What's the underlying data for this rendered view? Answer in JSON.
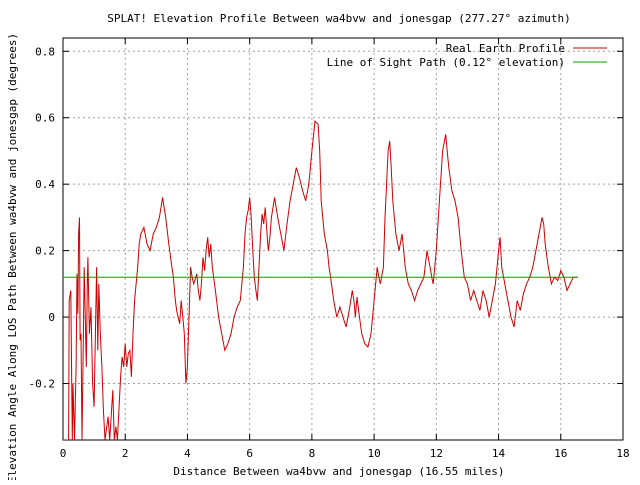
{
  "chart_data": {
    "type": "line",
    "title": "SPLAT! Elevation Profile Between wa4bvw and jonesgap (277.27° azimuth)",
    "xlabel": "Distance Between wa4bvw and jonesgap (16.55 miles)",
    "ylabel": "Elevation Angle Along LOS Path Between wa4bvw and jonesgap (degrees)",
    "xlim": [
      0,
      18
    ],
    "ylim": [
      -0.37,
      0.84
    ],
    "xticks": [
      0,
      2,
      4,
      6,
      8,
      10,
      12,
      14,
      16,
      18
    ],
    "xtick_labels": [
      "0",
      "2",
      "4",
      "6",
      "8",
      "10",
      "12",
      "14",
      "16",
      "18"
    ],
    "yticks": [
      -0.2,
      0,
      0.2,
      0.4,
      0.6,
      0.8
    ],
    "ytick_labels": [
      "-0.2",
      "0",
      "0.2",
      "0.4",
      "0.6",
      "0.8"
    ],
    "grid": true,
    "legend_position": "top-right",
    "series": [
      {
        "name": "Real Earth Profile",
        "color": "#cc0000",
        "points": [
          [
            0.0,
            -0.37
          ],
          [
            0.18,
            -0.37
          ],
          [
            0.2,
            0.05
          ],
          [
            0.25,
            0.08
          ],
          [
            0.3,
            -0.37
          ],
          [
            0.32,
            -0.2
          ],
          [
            0.37,
            -0.37
          ],
          [
            0.42,
            -0.15
          ],
          [
            0.45,
            0.13
          ],
          [
            0.48,
            0.01
          ],
          [
            0.5,
            0.25
          ],
          [
            0.53,
            0.3
          ],
          [
            0.55,
            -0.07
          ],
          [
            0.58,
            -0.05
          ],
          [
            0.61,
            -0.37
          ],
          [
            0.65,
            -0.1
          ],
          [
            0.68,
            0.15
          ],
          [
            0.72,
            -0.02
          ],
          [
            0.75,
            -0.15
          ],
          [
            0.78,
            0.1
          ],
          [
            0.8,
            0.18
          ],
          [
            0.85,
            -0.05
          ],
          [
            0.9,
            0.03
          ],
          [
            0.95,
            -0.2
          ],
          [
            1.0,
            -0.27
          ],
          [
            1.05,
            0.0
          ],
          [
            1.08,
            0.15
          ],
          [
            1.12,
            -0.1
          ],
          [
            1.15,
            0.1
          ],
          [
            1.2,
            -0.05
          ],
          [
            1.25,
            -0.15
          ],
          [
            1.3,
            -0.28
          ],
          [
            1.35,
            -0.37
          ],
          [
            1.45,
            -0.3
          ],
          [
            1.5,
            -0.37
          ],
          [
            1.6,
            -0.22
          ],
          [
            1.65,
            -0.37
          ],
          [
            1.7,
            -0.33
          ],
          [
            1.75,
            -0.37
          ],
          [
            1.85,
            -0.18
          ],
          [
            1.9,
            -0.12
          ],
          [
            1.95,
            -0.15
          ],
          [
            2.0,
            -0.08
          ],
          [
            2.05,
            -0.15
          ],
          [
            2.1,
            -0.11
          ],
          [
            2.15,
            -0.1
          ],
          [
            2.2,
            -0.18
          ],
          [
            2.25,
            -0.05
          ],
          [
            2.3,
            0.05
          ],
          [
            2.35,
            0.1
          ],
          [
            2.4,
            0.15
          ],
          [
            2.45,
            0.22
          ],
          [
            2.5,
            0.25
          ],
          [
            2.6,
            0.27
          ],
          [
            2.7,
            0.22
          ],
          [
            2.8,
            0.2
          ],
          [
            2.9,
            0.25
          ],
          [
            3.0,
            0.27
          ],
          [
            3.1,
            0.3
          ],
          [
            3.2,
            0.36
          ],
          [
            3.3,
            0.3
          ],
          [
            3.4,
            0.22
          ],
          [
            3.5,
            0.15
          ],
          [
            3.55,
            0.12
          ],
          [
            3.6,
            0.06
          ],
          [
            3.65,
            0.02
          ],
          [
            3.7,
            0.0
          ],
          [
            3.75,
            -0.02
          ],
          [
            3.8,
            0.05
          ],
          [
            3.85,
            0.0
          ],
          [
            3.9,
            -0.05
          ],
          [
            3.95,
            -0.2
          ],
          [
            4.0,
            -0.15
          ],
          [
            4.05,
            0.0
          ],
          [
            4.1,
            0.15
          ],
          [
            4.15,
            0.12
          ],
          [
            4.2,
            0.1
          ],
          [
            4.3,
            0.13
          ],
          [
            4.35,
            0.08
          ],
          [
            4.4,
            0.05
          ],
          [
            4.45,
            0.1
          ],
          [
            4.5,
            0.18
          ],
          [
            4.55,
            0.14
          ],
          [
            4.6,
            0.2
          ],
          [
            4.65,
            0.24
          ],
          [
            4.7,
            0.18
          ],
          [
            4.75,
            0.22
          ],
          [
            4.8,
            0.15
          ],
          [
            4.9,
            0.08
          ],
          [
            5.0,
            0.0
          ],
          [
            5.1,
            -0.05
          ],
          [
            5.2,
            -0.1
          ],
          [
            5.3,
            -0.08
          ],
          [
            5.4,
            -0.05
          ],
          [
            5.5,
            0.0
          ],
          [
            5.6,
            0.03
          ],
          [
            5.7,
            0.05
          ],
          [
            5.8,
            0.15
          ],
          [
            5.85,
            0.25
          ],
          [
            5.9,
            0.3
          ],
          [
            5.95,
            0.32
          ],
          [
            6.0,
            0.36
          ],
          [
            6.05,
            0.3
          ],
          [
            6.1,
            0.2
          ],
          [
            6.15,
            0.12
          ],
          [
            6.2,
            0.08
          ],
          [
            6.25,
            0.05
          ],
          [
            6.3,
            0.15
          ],
          [
            6.35,
            0.25
          ],
          [
            6.4,
            0.31
          ],
          [
            6.45,
            0.28
          ],
          [
            6.5,
            0.33
          ],
          [
            6.55,
            0.26
          ],
          [
            6.6,
            0.2
          ],
          [
            6.65,
            0.24
          ],
          [
            6.7,
            0.3
          ],
          [
            6.8,
            0.36
          ],
          [
            6.9,
            0.3
          ],
          [
            7.0,
            0.25
          ],
          [
            7.1,
            0.2
          ],
          [
            7.2,
            0.28
          ],
          [
            7.3,
            0.35
          ],
          [
            7.4,
            0.4
          ],
          [
            7.5,
            0.45
          ],
          [
            7.6,
            0.42
          ],
          [
            7.7,
            0.38
          ],
          [
            7.8,
            0.35
          ],
          [
            7.9,
            0.4
          ],
          [
            8.0,
            0.5
          ],
          [
            8.1,
            0.59
          ],
          [
            8.2,
            0.58
          ],
          [
            8.25,
            0.5
          ],
          [
            8.3,
            0.35
          ],
          [
            8.4,
            0.25
          ],
          [
            8.5,
            0.2
          ],
          [
            8.55,
            0.15
          ],
          [
            8.6,
            0.12
          ],
          [
            8.7,
            0.05
          ],
          [
            8.8,
            0.0
          ],
          [
            8.9,
            0.03
          ],
          [
            9.0,
            0.0
          ],
          [
            9.1,
            -0.03
          ],
          [
            9.2,
            0.02
          ],
          [
            9.3,
            0.08
          ],
          [
            9.35,
            0.05
          ],
          [
            9.4,
            0.0
          ],
          [
            9.45,
            0.06
          ],
          [
            9.5,
            0.02
          ],
          [
            9.6,
            -0.05
          ],
          [
            9.7,
            -0.08
          ],
          [
            9.8,
            -0.09
          ],
          [
            9.9,
            -0.05
          ],
          [
            10.0,
            0.05
          ],
          [
            10.1,
            0.15
          ],
          [
            10.15,
            0.12
          ],
          [
            10.2,
            0.1
          ],
          [
            10.3,
            0.15
          ],
          [
            10.35,
            0.3
          ],
          [
            10.4,
            0.4
          ],
          [
            10.45,
            0.5
          ],
          [
            10.5,
            0.53
          ],
          [
            10.55,
            0.45
          ],
          [
            10.6,
            0.35
          ],
          [
            10.7,
            0.25
          ],
          [
            10.8,
            0.2
          ],
          [
            10.9,
            0.25
          ],
          [
            11.0,
            0.15
          ],
          [
            11.1,
            0.1
          ],
          [
            11.2,
            0.08
          ],
          [
            11.3,
            0.05
          ],
          [
            11.4,
            0.08
          ],
          [
            11.5,
            0.1
          ],
          [
            11.6,
            0.12
          ],
          [
            11.7,
            0.2
          ],
          [
            11.8,
            0.15
          ],
          [
            11.85,
            0.12
          ],
          [
            11.9,
            0.1
          ],
          [
            12.0,
            0.2
          ],
          [
            12.1,
            0.35
          ],
          [
            12.2,
            0.5
          ],
          [
            12.3,
            0.55
          ],
          [
            12.35,
            0.5
          ],
          [
            12.4,
            0.45
          ],
          [
            12.5,
            0.38
          ],
          [
            12.6,
            0.35
          ],
          [
            12.7,
            0.3
          ],
          [
            12.8,
            0.2
          ],
          [
            12.9,
            0.12
          ],
          [
            13.0,
            0.1
          ],
          [
            13.1,
            0.05
          ],
          [
            13.2,
            0.08
          ],
          [
            13.3,
            0.05
          ],
          [
            13.4,
            0.02
          ],
          [
            13.5,
            0.08
          ],
          [
            13.6,
            0.05
          ],
          [
            13.7,
            0.0
          ],
          [
            13.8,
            0.05
          ],
          [
            13.9,
            0.1
          ],
          [
            14.0,
            0.2
          ],
          [
            14.05,
            0.24
          ],
          [
            14.1,
            0.15
          ],
          [
            14.2,
            0.1
          ],
          [
            14.3,
            0.05
          ],
          [
            14.4,
            0.0
          ],
          [
            14.5,
            -0.03
          ],
          [
            14.6,
            0.05
          ],
          [
            14.7,
            0.02
          ],
          [
            14.8,
            0.07
          ],
          [
            14.9,
            0.1
          ],
          [
            15.0,
            0.12
          ],
          [
            15.1,
            0.15
          ],
          [
            15.2,
            0.2
          ],
          [
            15.3,
            0.25
          ],
          [
            15.4,
            0.3
          ],
          [
            15.45,
            0.28
          ],
          [
            15.5,
            0.22
          ],
          [
            15.6,
            0.15
          ],
          [
            15.7,
            0.1
          ],
          [
            15.8,
            0.12
          ],
          [
            15.9,
            0.11
          ],
          [
            16.0,
            0.14
          ],
          [
            16.1,
            0.12
          ],
          [
            16.2,
            0.08
          ],
          [
            16.3,
            0.1
          ],
          [
            16.4,
            0.12
          ],
          [
            16.55,
            0.12
          ]
        ]
      },
      {
        "name": "Line of Sight Path (0.12° elevation)",
        "color": "#00a000",
        "points": [
          [
            0.0,
            0.12
          ],
          [
            16.55,
            0.12
          ]
        ]
      }
    ]
  }
}
